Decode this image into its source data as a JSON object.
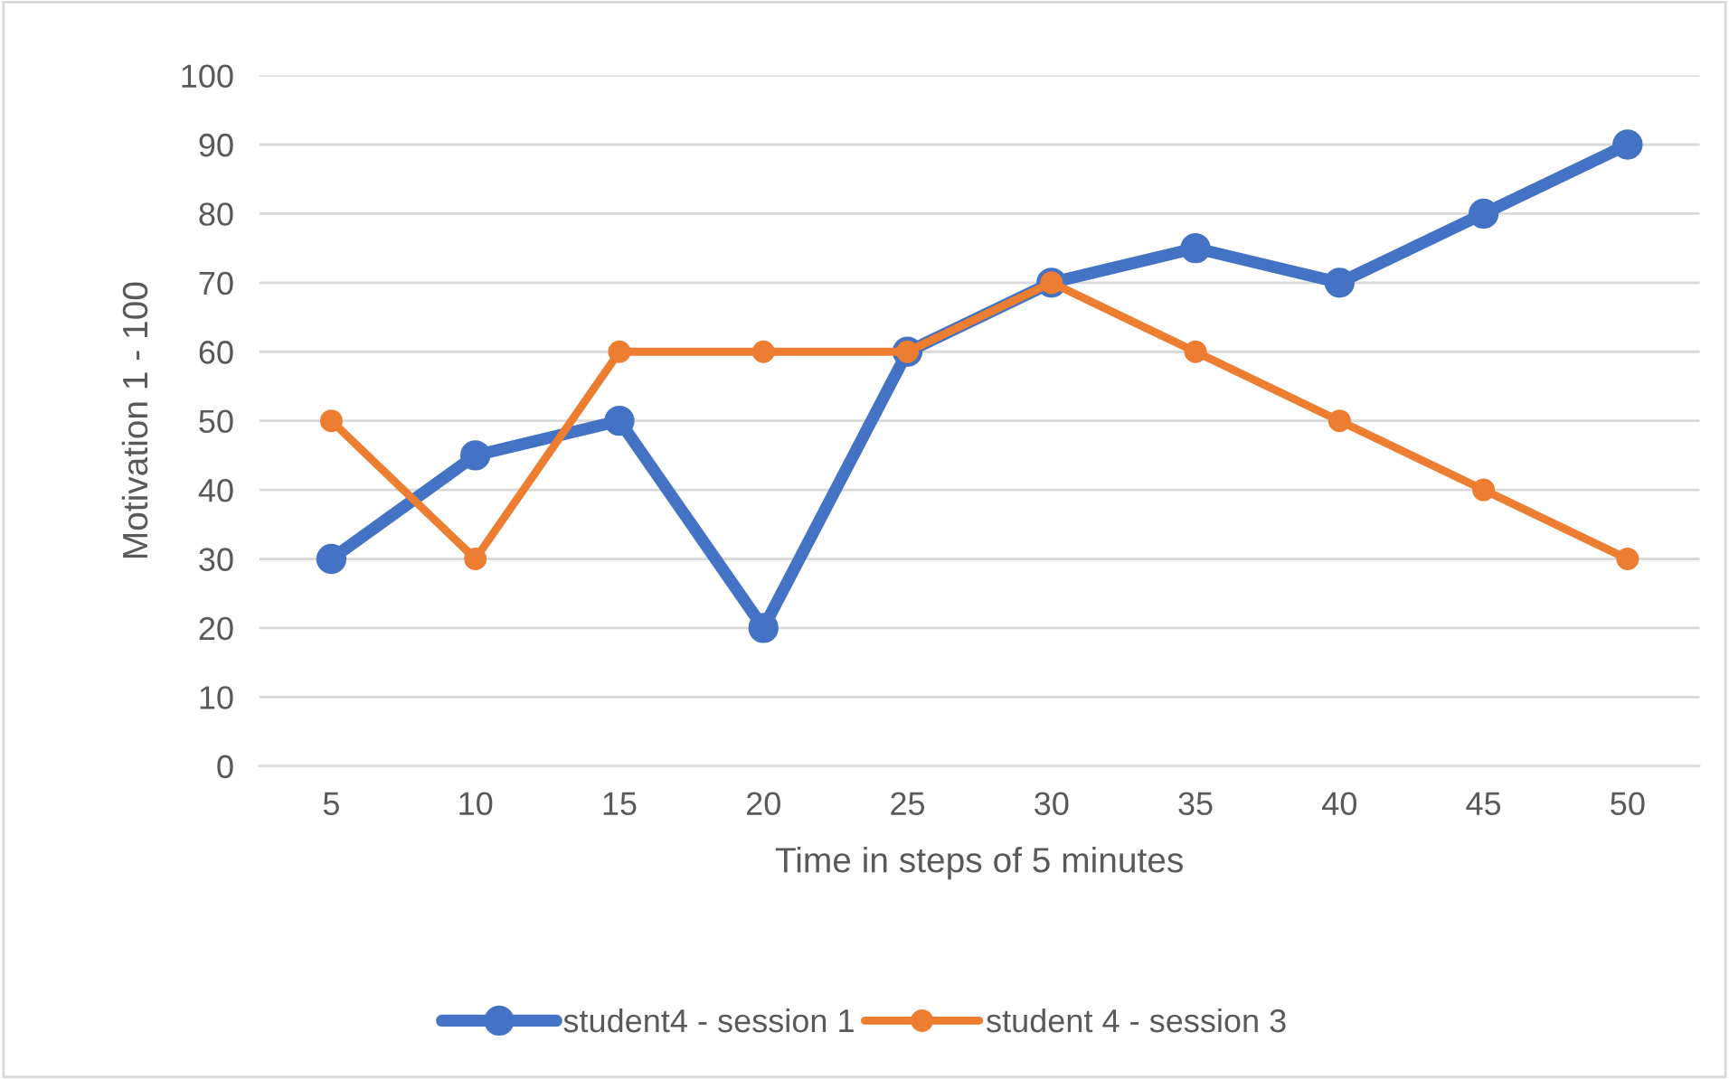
{
  "chart_data": {
    "type": "line",
    "xlabel": "Time in steps of 5 minutes",
    "ylabel": "Motivation 1 - 100",
    "categories": [
      "5",
      "10",
      "15",
      "20",
      "25",
      "30",
      "35",
      "40",
      "45",
      "50"
    ],
    "series": [
      {
        "name": "student4 - session 1",
        "color": "#4472c4",
        "values": [
          30,
          45,
          50,
          20,
          60,
          70,
          75,
          70,
          80,
          90
        ]
      },
      {
        "name": "student 4 - session 3",
        "color": "#ed7d31",
        "values": [
          50,
          30,
          60,
          60,
          60,
          70,
          60,
          50,
          40,
          30
        ]
      }
    ],
    "ylim": [
      0,
      100
    ],
    "yticks": [
      0,
      10,
      20,
      30,
      40,
      50,
      60,
      70,
      80,
      90,
      100
    ],
    "grid": "y",
    "legend": "bottom",
    "marker": "circle",
    "line_style": "solid"
  }
}
